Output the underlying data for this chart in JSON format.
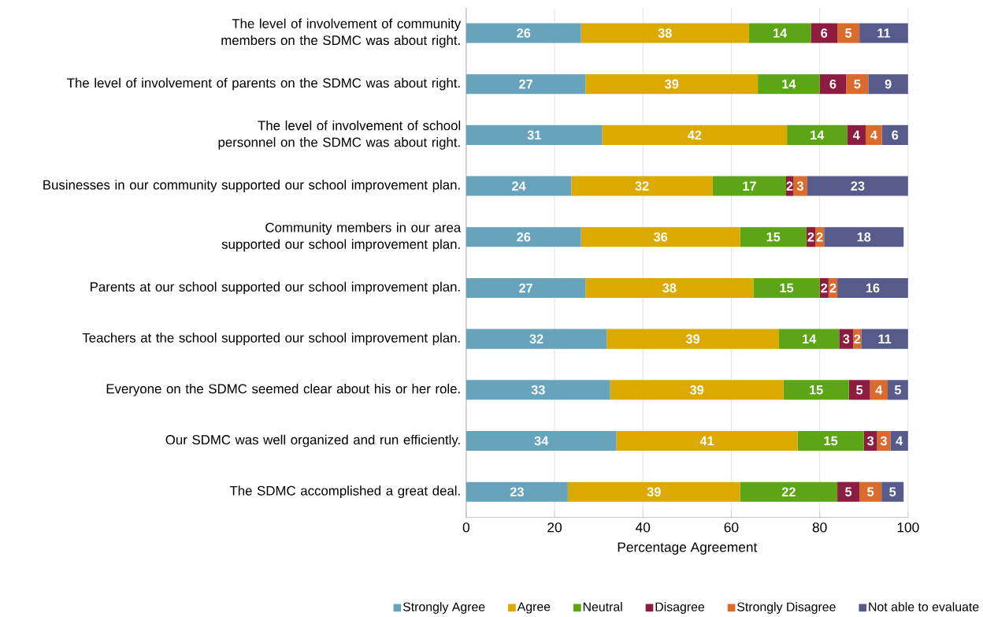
{
  "chart_data": {
    "type": "bar",
    "orientation": "horizontal",
    "stacked": true,
    "xlabel": "Percentage Agreement",
    "categories": [
      "The level of involvement of community members on the SDMC was about right.",
      "The level of involvement of parents on the SDMC was about right.",
      "The level of involvement of school personnel on the SDMC was about right.",
      "Businesses in our community supported our school improvement plan.",
      "Community members in our area supported our school improvement plan.",
      "Parents at our school supported our school improvement plan.",
      "Teachers at the school supported our school improvement plan.",
      "Everyone on the SDMC seemed clear about his or her role.",
      "Our SDMC was well organized and run efficiently.",
      "The SDMC accomplished a great deal."
    ],
    "series": [
      {
        "name": "Strongly Agree",
        "color": "#67a3bb",
        "values": [
          26,
          27,
          30.8,
          23.8,
          26,
          27,
          31.8,
          32.6,
          34,
          23
        ],
        "value_labels": [
          "26",
          "27",
          "31",
          "24",
          "26",
          "27",
          "32",
          "33",
          "34",
          "23"
        ]
      },
      {
        "name": "Agree",
        "color": "#dba900",
        "values": [
          38,
          39,
          41.8,
          32,
          36,
          38,
          39,
          39.2,
          41,
          39
        ],
        "value_labels": [
          "38",
          "39",
          "42",
          "32",
          "36",
          "38",
          "39",
          "39",
          "41",
          "39"
        ]
      },
      {
        "name": "Neutral",
        "color": "#5ca516",
        "values": [
          14,
          14,
          13.6,
          16.6,
          15,
          15,
          13.6,
          14.8,
          15,
          22
        ],
        "value_labels": [
          "14",
          "14",
          "14",
          "17",
          "15",
          "15",
          "14",
          "15",
          "15",
          "22"
        ]
      },
      {
        "name": "Disagree",
        "color": "#8c1c40",
        "values": [
          6,
          6,
          4.2,
          1.6,
          2,
          2,
          3.2,
          4.8,
          3,
          5
        ],
        "value_labels": [
          "6",
          "6",
          "4",
          "2",
          "2",
          "2",
          "3",
          "5",
          "3",
          "5"
        ]
      },
      {
        "name": "Strongly Disagree",
        "color": "#d96b2c",
        "values": [
          5,
          5,
          3.7,
          3.2,
          2,
          2,
          1.8,
          4.0,
          3,
          5
        ],
        "value_labels": [
          "5",
          "5",
          "4",
          "3",
          "2",
          "2",
          "2",
          "4",
          "3",
          "5"
        ]
      },
      {
        "name": "Not able to evaluate",
        "color": "#575b8c",
        "values": [
          11,
          9,
          5.9,
          22.8,
          18,
          16,
          10.6,
          4.6,
          4,
          5
        ],
        "value_labels": [
          "11",
          "9",
          "6",
          "23",
          "18",
          "16",
          "11",
          "5",
          "4",
          "5"
        ]
      }
    ],
    "xlim": [
      0,
      100
    ],
    "xticks": [
      0,
      20,
      40,
      60,
      80,
      100
    ],
    "grid": "x",
    "legend": "bottom"
  }
}
